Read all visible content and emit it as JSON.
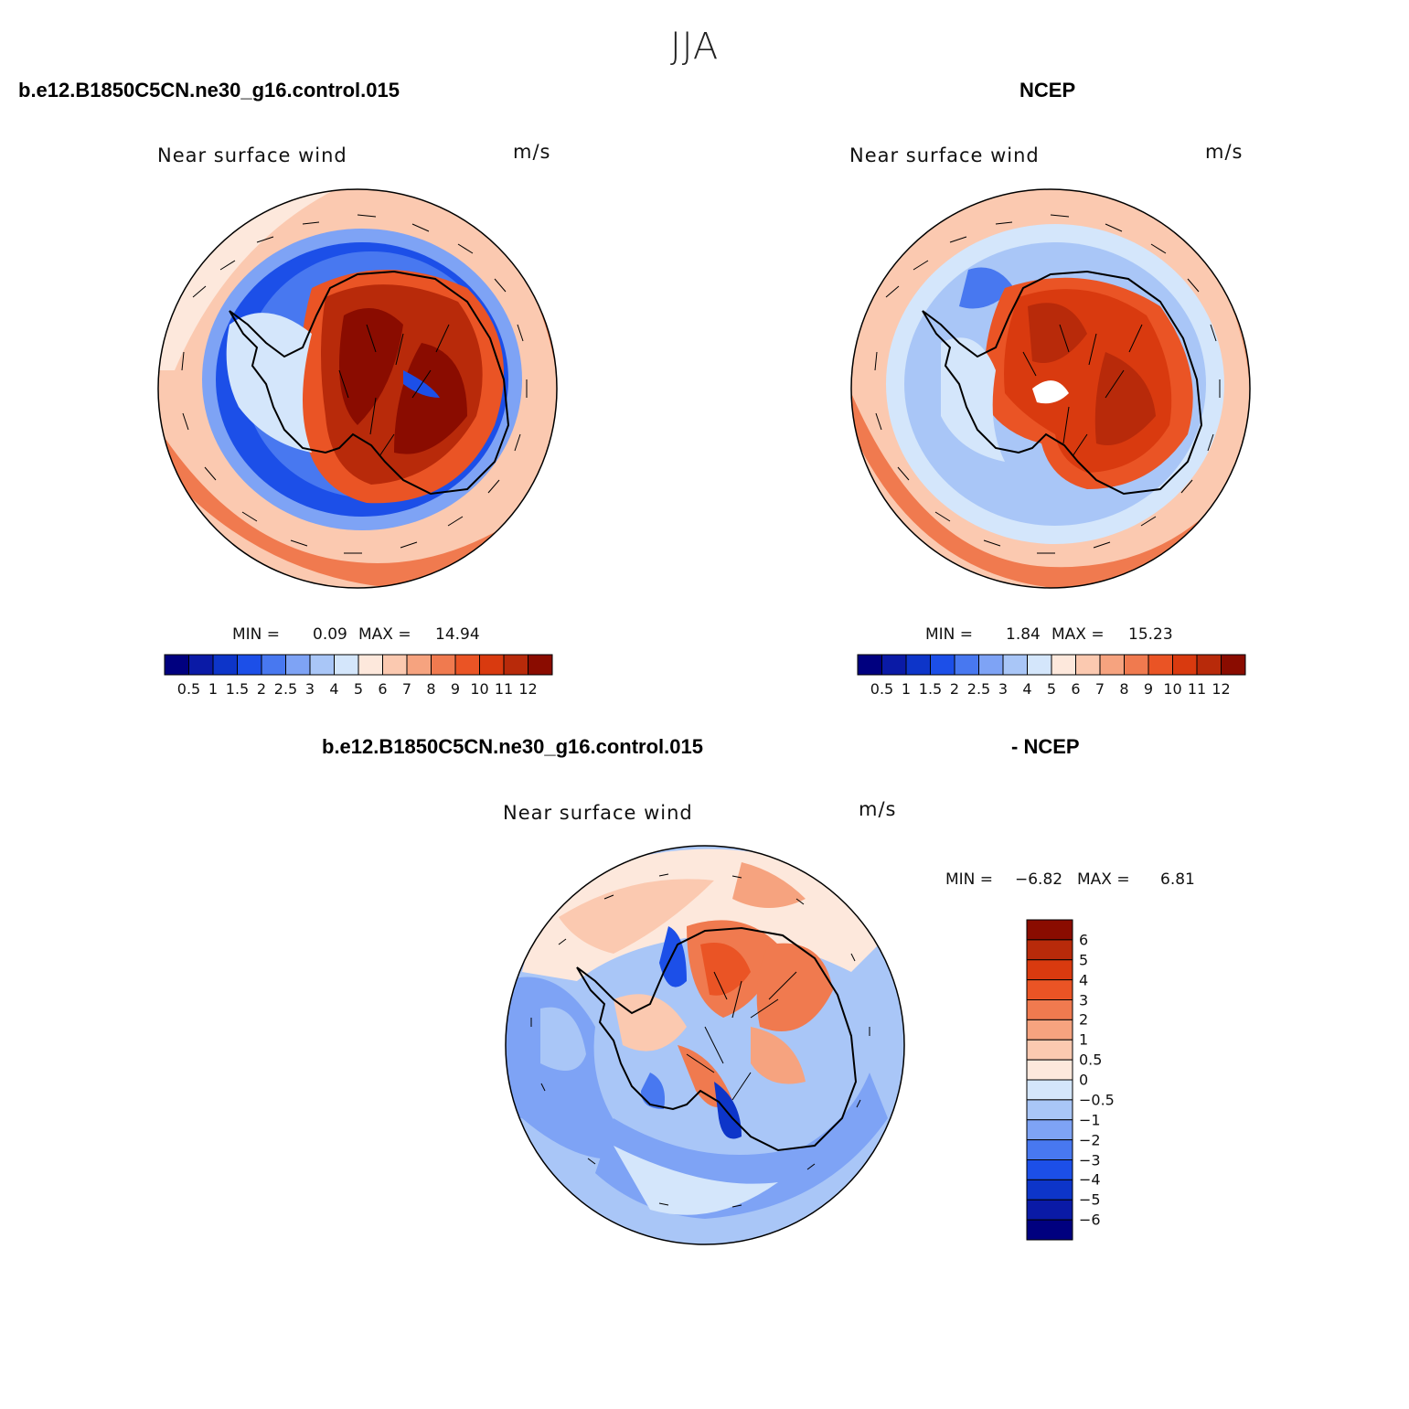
{
  "title": "JJA",
  "panels": {
    "model": {
      "case_name": "b.e12.B1850C5CN.ne30_g16.control.015",
      "variable": "Near surface wind",
      "units": "m/s",
      "min_label": "MIN =",
      "min_value": "0.09",
      "max_label": "MAX =",
      "max_value": "14.94"
    },
    "obs": {
      "case_name": "NCEP",
      "variable": "Near surface wind",
      "units": "m/s",
      "min_label": "MIN =",
      "min_value": "1.84",
      "max_label": "MAX =",
      "max_value": "15.23"
    },
    "diff": {
      "case_name": "b.e12.B1850C5CN.ne30_g16.control.015",
      "case_suffix": "- NCEP",
      "variable": "Near surface wind",
      "units": "m/s",
      "min_label": "MIN =",
      "min_value": "−6.82",
      "max_label": "MAX =",
      "max_value": "6.81"
    }
  },
  "wind_colorbar": {
    "levels": [
      "0.5",
      "1",
      "1.5",
      "2",
      "2.5",
      "3",
      "4",
      "5",
      "6",
      "7",
      "8",
      "9",
      "10",
      "11",
      "12"
    ],
    "colors": [
      "#00007f",
      "#0a1aa6",
      "#0d35c9",
      "#1c4fe8",
      "#4878f0",
      "#7ea3f5",
      "#a9c6f7",
      "#d4e6fb",
      "#fde8dc",
      "#fbc9b0",
      "#f6a37f",
      "#f07a4f",
      "#ea5425",
      "#d93a0f",
      "#b82a0a",
      "#8a0c00"
    ]
  },
  "diff_colorbar": {
    "levels": [
      "6",
      "5",
      "4",
      "3",
      "2",
      "1",
      "0.5",
      "0",
      "−0.5",
      "−1",
      "−2",
      "−3",
      "−4",
      "−5",
      "−6"
    ],
    "colors": [
      "#8a0c00",
      "#b82a0a",
      "#d93a0f",
      "#ea5425",
      "#f07a4f",
      "#f6a37f",
      "#fbc9b0",
      "#fde8dc",
      "#d4e6fb",
      "#a9c6f7",
      "#7ea3f5",
      "#4878f0",
      "#1c4fe8",
      "#0d35c9",
      "#0a1aa6",
      "#00007f"
    ]
  }
}
